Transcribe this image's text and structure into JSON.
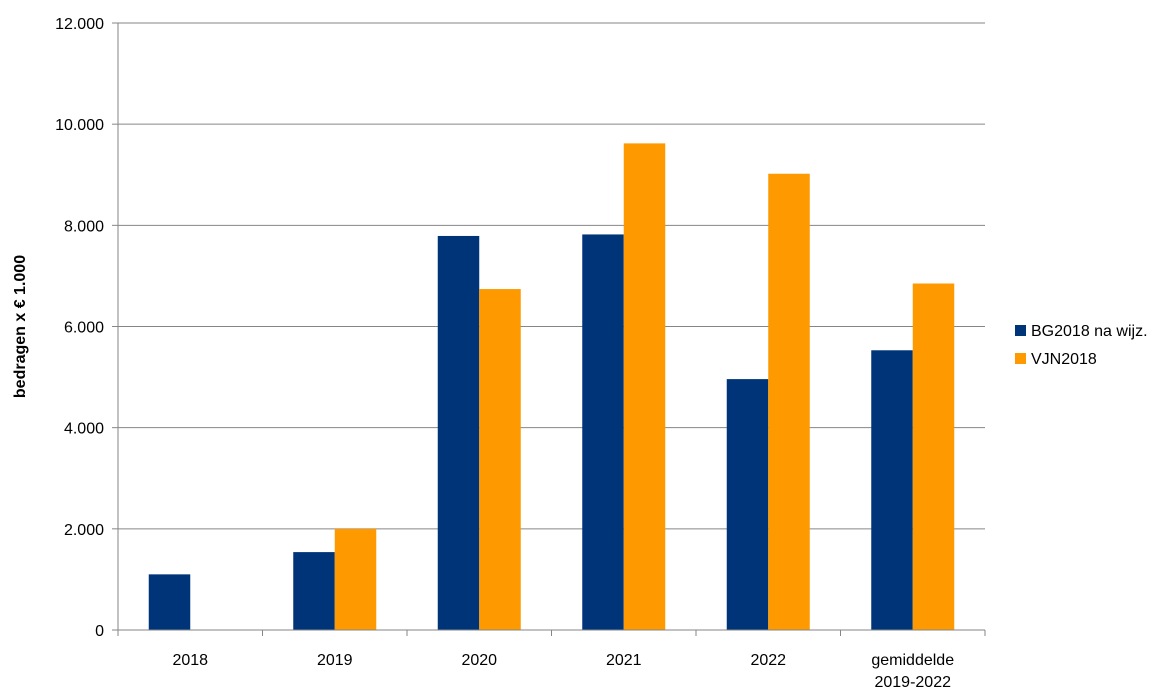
{
  "chart_data": {
    "type": "bar",
    "title": "",
    "xlabel": "",
    "ylabel": "bedragen x € 1.000",
    "ylim": [
      0,
      12000
    ],
    "yticks": [
      0,
      2000,
      4000,
      6000,
      8000,
      10000,
      12000
    ],
    "ytick_labels": [
      "0",
      "2.000",
      "4.000",
      "6.000",
      "8.000",
      "10.000",
      "12.000"
    ],
    "categories": [
      "2018",
      "2019",
      "2020",
      "2021",
      "2022",
      "gemiddelde\n2019-2022"
    ],
    "series": [
      {
        "name": "BG2018 na wijz.",
        "color": "#003478",
        "values": [
          1100,
          1540,
          7790,
          7820,
          4960,
          5530
        ]
      },
      {
        "name": "VJN2018",
        "color": "#FF9900",
        "values": [
          null,
          2000,
          6740,
          9620,
          9020,
          6850
        ]
      }
    ],
    "grid": "horizontal",
    "legend_position": "right"
  }
}
